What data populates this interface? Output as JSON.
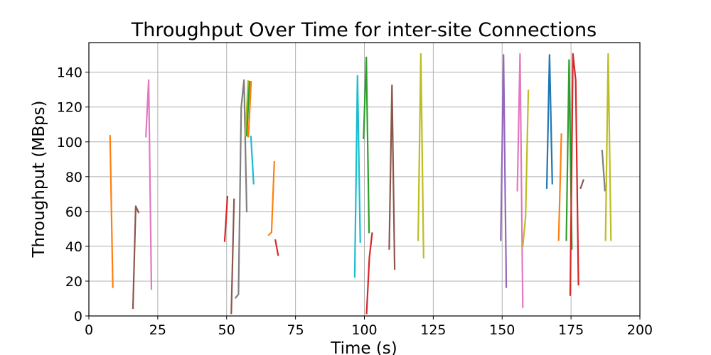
{
  "chart_data": {
    "type": "line",
    "title": "Throughput Over Time for inter-site Connections",
    "xlabel": "Time (s)",
    "ylabel": "Throughput (MBps)",
    "xlim": [
      0,
      200
    ],
    "ylim": [
      0,
      157
    ],
    "xticks": [
      0,
      25,
      50,
      75,
      100,
      125,
      150,
      175,
      200
    ],
    "yticks": [
      0,
      20,
      40,
      60,
      80,
      100,
      120,
      140
    ],
    "grid": true,
    "legend": "none",
    "series": [
      {
        "color": "#ff7f0e",
        "points": [
          [
            7.7,
            103.5
          ],
          [
            8.7,
            16.5
          ]
        ]
      },
      {
        "color": "#8c564b",
        "points": [
          [
            16.0,
            4.5
          ],
          [
            17.0,
            63.0
          ],
          [
            18.0,
            59.5
          ]
        ]
      },
      {
        "color": "#e377c2",
        "points": [
          [
            20.7,
            103.0
          ],
          [
            21.7,
            135.5
          ],
          [
            22.7,
            15.5
          ]
        ]
      },
      {
        "color": "#d62728",
        "points": [
          [
            49.3,
            43.0
          ],
          [
            50.3,
            68.5
          ]
        ]
      },
      {
        "color": "#8c564b",
        "points": [
          [
            51.7,
            1.5
          ],
          [
            52.7,
            67.0
          ]
        ]
      },
      {
        "color": "#7f7f7f",
        "points": [
          [
            53.3,
            10.5
          ],
          [
            54.3,
            12.5
          ],
          [
            55.3,
            120.0
          ],
          [
            56.3,
            135.5
          ],
          [
            57.3,
            60.0
          ]
        ]
      },
      {
        "color": "#bcbd22",
        "points": [
          [
            56.8,
            103.5
          ],
          [
            57.8,
            135.0
          ]
        ]
      },
      {
        "color": "#2ca02c",
        "points": [
          [
            57.3,
            103.5
          ],
          [
            58.3,
            134.5
          ]
        ]
      },
      {
        "color": "#ff7f0e",
        "points": [
          [
            57.9,
            103.0
          ],
          [
            58.9,
            134.5
          ]
        ]
      },
      {
        "color": "#17becf",
        "points": [
          [
            58.8,
            103.0
          ],
          [
            59.8,
            76.0
          ]
        ]
      },
      {
        "color": "#ff7f0e",
        "points": [
          [
            65.3,
            46.5
          ],
          [
            66.3,
            48.0
          ],
          [
            67.3,
            88.5
          ]
        ]
      },
      {
        "color": "#d62728",
        "points": [
          [
            67.7,
            43.5
          ],
          [
            68.7,
            35.0
          ]
        ]
      },
      {
        "color": "#17becf",
        "points": [
          [
            96.5,
            22.5
          ],
          [
            97.5,
            138.0
          ],
          [
            98.5,
            42.5
          ]
        ]
      },
      {
        "color": "#2ca02c",
        "points": [
          [
            99.7,
            102.0
          ],
          [
            100.7,
            148.5
          ],
          [
            101.7,
            48.0
          ]
        ]
      },
      {
        "color": "#d62728",
        "points": [
          [
            100.8,
            1.5
          ],
          [
            101.8,
            33.5
          ],
          [
            102.8,
            47.5
          ]
        ]
      },
      {
        "color": "#8c564b",
        "points": [
          [
            109.0,
            38.5
          ],
          [
            110.0,
            132.5
          ],
          [
            111.0,
            27.0
          ]
        ]
      },
      {
        "color": "#bcbd22",
        "points": [
          [
            119.5,
            43.5
          ],
          [
            120.5,
            150.5
          ],
          [
            121.5,
            33.5
          ]
        ]
      },
      {
        "color": "#9467bd",
        "points": [
          [
            149.5,
            43.5
          ],
          [
            150.5,
            150.0
          ],
          [
            151.5,
            16.5
          ]
        ]
      },
      {
        "color": "#e377c2",
        "points": [
          [
            155.5,
            72.0
          ],
          [
            156.5,
            150.5
          ],
          [
            157.5,
            5.0
          ]
        ]
      },
      {
        "color": "#bcbd22",
        "points": [
          [
            157.5,
            40.0
          ],
          [
            158.5,
            57.0
          ],
          [
            159.5,
            129.5
          ]
        ]
      },
      {
        "color": "#1f77b4",
        "points": [
          [
            166.2,
            73.5
          ],
          [
            167.2,
            150.0
          ],
          [
            168.2,
            76.0
          ]
        ]
      },
      {
        "color": "#ff7f0e",
        "points": [
          [
            170.5,
            43.5
          ],
          [
            171.5,
            104.5
          ]
        ]
      },
      {
        "color": "#2ca02c",
        "points": [
          [
            173.3,
            43.5
          ],
          [
            174.3,
            147.0
          ],
          [
            175.3,
            38.5
          ]
        ]
      },
      {
        "color": "#d62728",
        "points": [
          [
            174.7,
            12.0
          ],
          [
            175.7,
            150.5
          ],
          [
            176.7,
            135.5
          ],
          [
            177.7,
            18.0
          ]
        ]
      },
      {
        "color": "#8c564b",
        "points": [
          [
            178.5,
            73.5
          ],
          [
            179.5,
            78.0
          ]
        ]
      },
      {
        "color": "#7f7f7f",
        "points": [
          [
            186.3,
            95.0
          ],
          [
            187.3,
            72.0
          ]
        ]
      },
      {
        "color": "#bcbd22",
        "points": [
          [
            187.5,
            43.5
          ],
          [
            188.5,
            150.5
          ],
          [
            189.5,
            43.5
          ]
        ]
      }
    ]
  }
}
